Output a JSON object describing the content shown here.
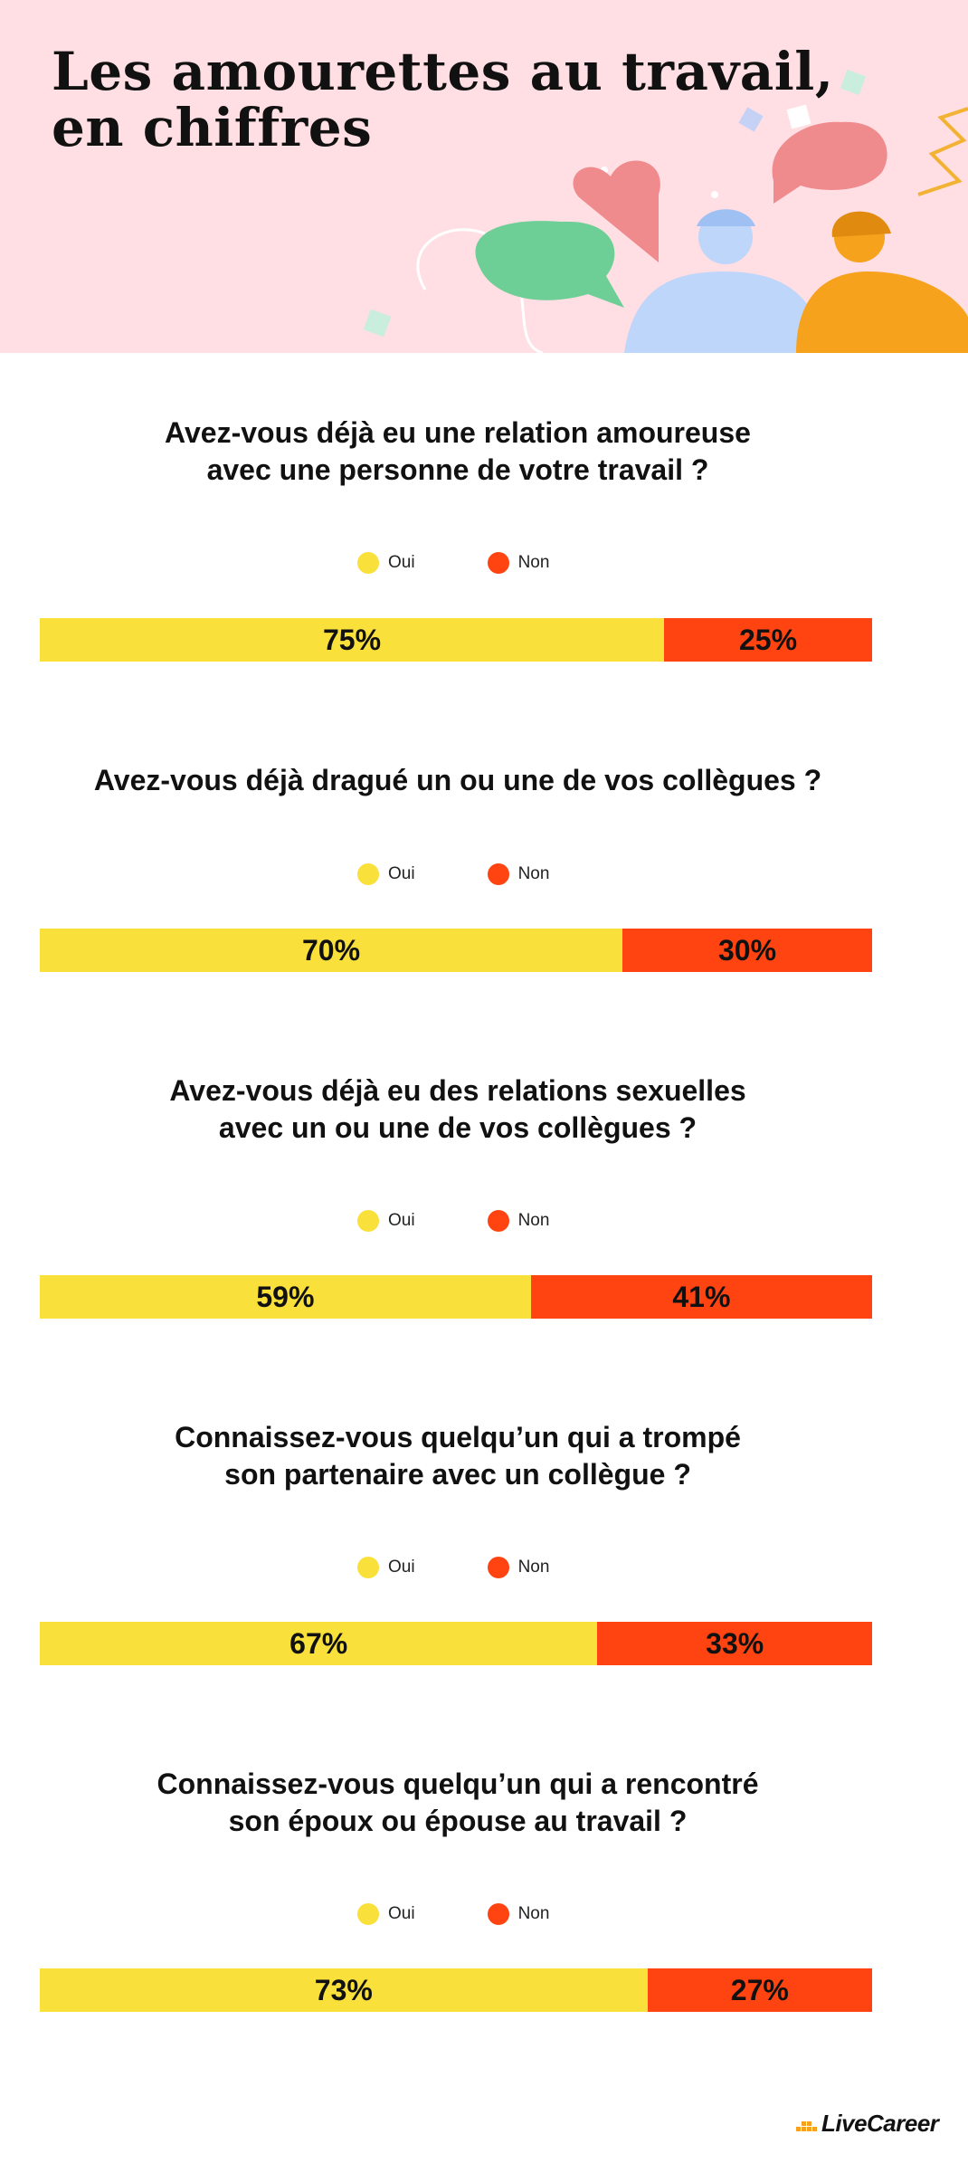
{
  "title": {
    "line1": "Les amourettes au travail,",
    "line2": "en chiffres"
  },
  "colors": {
    "header_bg": "#ffdfe3",
    "oui": "#f9e03b",
    "non": "#ff4411"
  },
  "chart_data": [
    {
      "type": "bar",
      "stacked": true,
      "orientation": "horizontal",
      "title_lines": [
        "Avez-vous déjà eu une relation amoureuse",
        "avec une personne de votre travail ?"
      ],
      "series": [
        {
          "name": "Oui",
          "value": 75,
          "label": "75%"
        },
        {
          "name": "Non",
          "value": 25,
          "label": "25%"
        }
      ]
    },
    {
      "type": "bar",
      "stacked": true,
      "orientation": "horizontal",
      "title_lines": [
        "Avez-vous déjà dragué un ou une de vos collègues ?"
      ],
      "series": [
        {
          "name": "Oui",
          "value": 70,
          "label": "70%"
        },
        {
          "name": "Non",
          "value": 30,
          "label": "30%"
        }
      ]
    },
    {
      "type": "bar",
      "stacked": true,
      "orientation": "horizontal",
      "title_lines": [
        "Avez-vous déjà eu des relations sexuelles",
        "avec un ou une de vos collègues ?"
      ],
      "series": [
        {
          "name": "Oui",
          "value": 59,
          "label": "59%"
        },
        {
          "name": "Non",
          "value": 41,
          "label": "41%"
        }
      ]
    },
    {
      "type": "bar",
      "stacked": true,
      "orientation": "horizontal",
      "title_lines": [
        "Connaissez-vous quelqu’un qui a trompé",
        "son partenaire avec un collègue ?"
      ],
      "series": [
        {
          "name": "Oui",
          "value": 67,
          "label": "67%"
        },
        {
          "name": "Non",
          "value": 33,
          "label": "33%"
        }
      ]
    },
    {
      "type": "bar",
      "stacked": true,
      "orientation": "horizontal",
      "title_lines": [
        "Connaissez-vous quelqu’un qui a rencontré",
        "son époux ou épouse au travail ?"
      ],
      "series": [
        {
          "name": "Oui",
          "value": 73,
          "label": "73%"
        },
        {
          "name": "Non",
          "value": 27,
          "label": "27%"
        }
      ]
    }
  ],
  "logo": {
    "text": "LiveCareer"
  }
}
